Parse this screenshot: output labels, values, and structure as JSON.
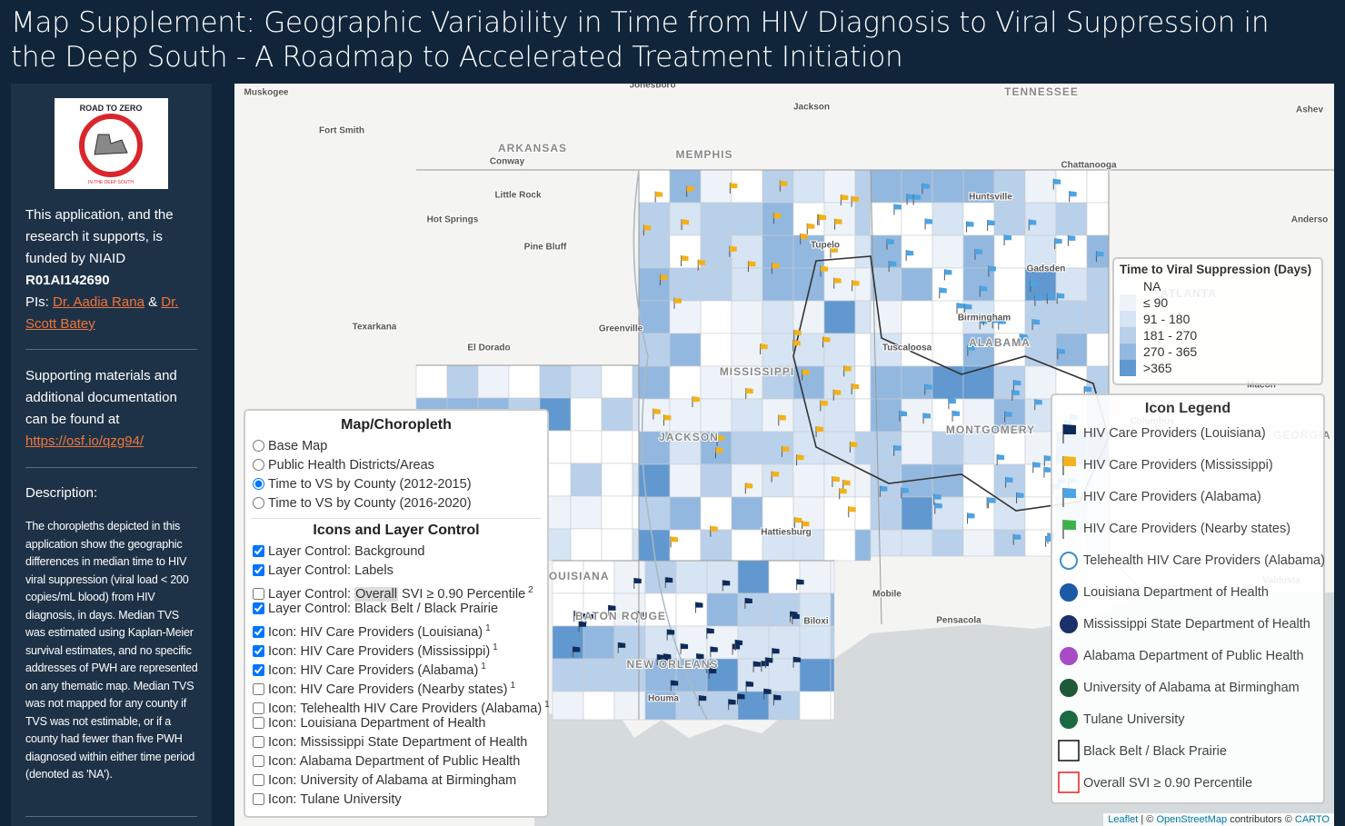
{
  "header": {
    "title": "Map Supplement: Geographic Variability in Time from HIV Diagnosis to Viral Suppression in the Deep South - A Roadmap to Accelerated Treatment Initiation"
  },
  "sidebar": {
    "logo": {
      "top": "ROAD TO ZERO",
      "bottom": "IN THE DEEP SOUTH"
    },
    "funding": "This application, and the research it supports, is funded by NIAID",
    "grant": "R01AI142690",
    "pis_label": "PIs:",
    "pi1": "Dr. Aadia Rana",
    "and": "&",
    "pi2": "Dr. Scott Batey",
    "supporting": "Supporting materials and additional documentation can be found at",
    "link": "https://osf.io/qzg94/",
    "description_title": "Description:",
    "description": "The choropleths depicted in this application show the geographic differences in median time to HIV viral suppression (viral load < 200 copies/mL blood) from HIV diagnosis, in days. Median TVS was estimated using Kaplan-Meier survival estimates, and no specific addresses of PWH are represented on any thematic map. Median TVS was not mapped for any county if TVS was not estimable, or if a county had fewer than five PWH diagnosed within either time period (denoted as 'NA')."
  },
  "map": {
    "labels": [
      "Muskogee",
      "Jonesboro",
      "TENNESSEE",
      "Jackson",
      "Ashev",
      "Fort Smith",
      "ARKANSAS",
      "Conway",
      "MEMPHIS",
      "Chattanooga",
      "Little Rock",
      "Huntsville",
      "Anderso",
      "Hot Springs",
      "Tupelo",
      "Pine Bluff",
      "Gadsden",
      "ATLANTA",
      "Birmingham",
      "Texarkana",
      "Greenville",
      "ALABAMA",
      "Tuscaloosa",
      "El Dorado",
      "MISSISSIPPI",
      "Macon",
      "Columbus",
      "MONTGOMERY",
      "GEORGIA",
      "JACKSON",
      "Hattiesburg",
      "LOUISIANA",
      "Valdosta",
      "BATON ROUGE",
      "Mobile",
      "Biloxi",
      "Pensacola",
      "NEW ORLEANS",
      "Houma"
    ]
  },
  "legend": {
    "title": "Time to Viral Suppression (Days)",
    "items": [
      {
        "label": "NA",
        "color": "#ffffff"
      },
      {
        "label": "≤ 90",
        "color": "#eef3fa"
      },
      {
        "label": "91 - 180",
        "color": "#d6e4f3"
      },
      {
        "label": "181 - 270",
        "color": "#b9d0ea"
      },
      {
        "label": "270 - 365",
        "color": "#93b8e0"
      },
      {
        "label": ">365",
        "color": "#6198d0"
      }
    ]
  },
  "control": {
    "title": "Map/Choropleth",
    "radios": [
      {
        "label": "Base Map",
        "checked": false
      },
      {
        "label": "Public Health Districts/Areas",
        "checked": false
      },
      {
        "label": "Time to VS by County (2012-2015)",
        "checked": true
      },
      {
        "label": "Time to VS by County (2016-2020)",
        "checked": false
      }
    ],
    "subtitle": "Icons and Layer Control",
    "checkboxes": [
      {
        "parts": [
          "Layer Control: Background"
        ],
        "checked": true
      },
      {
        "parts": [
          "Layer Control: Labels"
        ],
        "checked": true
      },
      {
        "parts": [
          "Layer Control:",
          "Overall",
          "SVI ≥ 0.90 Percentile"
        ],
        "sup": "2",
        "checked": false
      },
      {
        "parts": [
          "Layer Control: Black Belt / Black Prairie"
        ],
        "checked": true
      },
      {
        "parts": [
          "Icon: HIV Care Providers (Louisiana)"
        ],
        "sup": "1",
        "checked": true
      },
      {
        "parts": [
          "Icon: HIV Care Providers (Mississippi)"
        ],
        "sup": "1",
        "checked": true
      },
      {
        "parts": [
          "Icon: HIV Care Providers (Alabama)"
        ],
        "sup": "1",
        "checked": true
      },
      {
        "parts": [
          "Icon: HIV Care Providers (Nearby states)"
        ],
        "sup": "1",
        "checked": false
      },
      {
        "parts": [
          "Icon: Telehealth HIV Care Providers (Alabama)"
        ],
        "sup": "1",
        "checked": false
      },
      {
        "parts": [
          "Icon: Louisiana Department of Health"
        ],
        "checked": false
      },
      {
        "parts": [
          "Icon: Mississippi State Department of Health"
        ],
        "checked": false
      },
      {
        "parts": [
          "Icon: Alabama Department of Public Health"
        ],
        "checked": false
      },
      {
        "parts": [
          "Icon: University of Alabama at Birmingham"
        ],
        "checked": false
      },
      {
        "parts": [
          "Icon: Tulane University"
        ],
        "checked": false
      }
    ]
  },
  "icon_legend": {
    "title": "Icon Legend",
    "items": [
      {
        "label": "HIV Care Providers (Louisiana)",
        "color": "#0d2b5a"
      },
      {
        "label": "HIV Care Providers (Mississippi)",
        "color": "#f2b21a"
      },
      {
        "label": "HIV Care Providers (Alabama)",
        "color": "#4da3e3"
      },
      {
        "label": "HIV Care Providers (Nearby states)",
        "color": "#3cb34a"
      },
      {
        "label": "Telehealth HIV Care Providers (Alabama)"
      },
      {
        "label": "Louisiana Department of Health"
      },
      {
        "label": "Mississippi State Department of Health"
      },
      {
        "label": "Alabama Department of Public Health"
      },
      {
        "label": "University of Alabama at Birmingham"
      },
      {
        "label": "Tulane University"
      },
      {
        "label": "Black Belt / Black Prairie",
        "border": "#111111"
      },
      {
        "label": "Overall SVI ≥ 0.90 Percentile",
        "border": "#e0201b"
      }
    ]
  },
  "attribution": {
    "leaflet": "Leaflet",
    "sep": "| ©",
    "osm": "OpenStreetMap",
    "contrib": "contributors ©",
    "carto": "CARTO"
  }
}
